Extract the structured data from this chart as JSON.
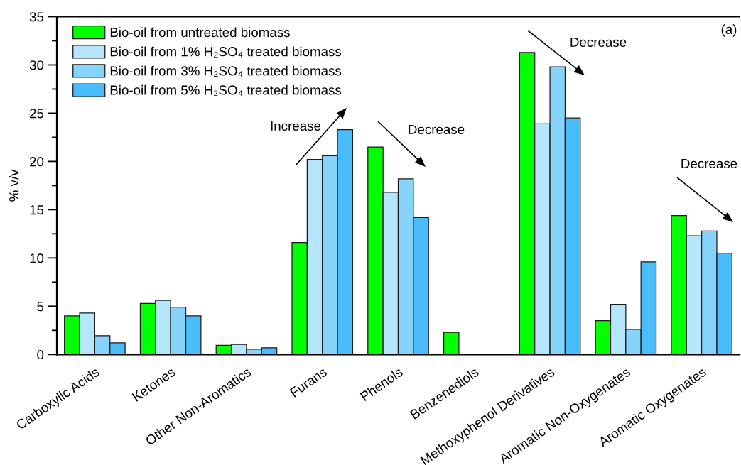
{
  "chart_data": {
    "type": "bar",
    "categories": [
      "Carboxylic Acids",
      "Ketones",
      "Other Non-Aromatics",
      "Furans",
      "Phenols",
      "Benzenediols",
      "Methoxyphenol Derivatives",
      "Aromatic Non-Oxygenates",
      "Aromatic Oxygenates"
    ],
    "series": [
      {
        "name": "Bio-oil from untreated biomass",
        "color": "#00ff00",
        "values": [
          4.0,
          5.3,
          0.95,
          11.6,
          21.5,
          2.3,
          31.3,
          3.5,
          14.4
        ]
      },
      {
        "name": "Bio-oil from 1% H₂SO₄ treated biomass",
        "color": "#b5e6fb",
        "values": [
          4.3,
          5.6,
          1.05,
          20.2,
          16.8,
          null,
          23.9,
          5.2,
          12.3
        ]
      },
      {
        "name": "Bio-oil from 3% H₂SO₄ treated biomass",
        "color": "#86d4fb",
        "values": [
          1.95,
          4.9,
          0.55,
          20.6,
          18.2,
          null,
          29.8,
          2.6,
          12.8
        ]
      },
      {
        "name": "Bio-oil from 5% H₂SO₄ treated biomass",
        "color": "#4bbcfa",
        "values": [
          1.2,
          4.0,
          0.7,
          23.3,
          14.2,
          null,
          24.5,
          9.6,
          10.5
        ]
      }
    ],
    "ylabel": "% v/v",
    "ylim": [
      0,
      35
    ],
    "yticks": [
      0,
      5,
      10,
      15,
      20,
      25,
      30,
      35
    ],
    "legend": "top left",
    "annotations": [
      "Increase",
      "Decrease",
      "Decrease",
      "Decrease",
      "(a)"
    ]
  }
}
